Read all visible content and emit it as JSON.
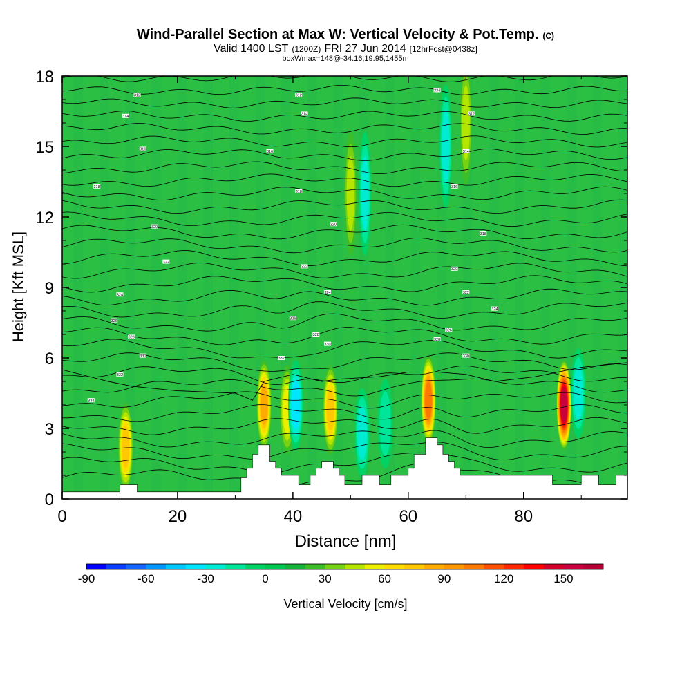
{
  "chart_data": {
    "type": "heatmap",
    "title": "Wind-Parallel Section at Max W: Vertical Velocity & Pot.Temp.",
    "title_mark": "(C)",
    "subtitle_valid": "Valid 1400 LST",
    "subtitle_utc": "(1200Z)",
    "subtitle_date": "FRI 27 Jun 2014",
    "subtitle_fcst": "[12hrFcst@0438z]",
    "subtitle_box": "boxWmax=148@-34.16,19.95,1455m",
    "xlabel": "Distance [nm]",
    "ylabel": "Height [Kft MSL]",
    "xlim": [
      0,
      98
    ],
    "ylim": [
      0,
      18
    ],
    "xticks": [
      0,
      20,
      40,
      60,
      80
    ],
    "yticks": [
      0,
      3,
      6,
      9,
      12,
      15,
      18
    ],
    "colorbar": {
      "label": "Vertical Velocity [cm/s]",
      "ticks": [
        -90,
        -60,
        -30,
        0,
        30,
        60,
        90,
        120,
        150
      ],
      "min": -90,
      "max": 170,
      "step": 10,
      "colors": [
        "#0000ff",
        "#0a3cff",
        "#1464ff",
        "#0096ff",
        "#00c8ff",
        "#00e6ff",
        "#00ecd2",
        "#00e698",
        "#00d264",
        "#00c850",
        "#14b43c",
        "#3cbe28",
        "#78d214",
        "#b4e600",
        "#ecf000",
        "#ffdc00",
        "#ffc800",
        "#ffaa00",
        "#ff9600",
        "#ff7800",
        "#ff5000",
        "#ff2800",
        "#ff0000",
        "#d20028",
        "#c8003c",
        "#b40032"
      ]
    },
    "background_color": "#2bbf44",
    "updrafts": [
      {
        "x": 11,
        "z": 2.2,
        "w": 70
      },
      {
        "x": 35,
        "z": 4.0,
        "w": 80
      },
      {
        "x": 39,
        "z": 3.8,
        "w": 55
      },
      {
        "x": 46.5,
        "z": 3.8,
        "w": 75
      },
      {
        "x": 63.5,
        "z": 4.2,
        "w": 100
      },
      {
        "x": 87,
        "z": 4.0,
        "w": 150
      },
      {
        "x": 50,
        "z": 13,
        "w": 45
      },
      {
        "x": 70,
        "z": 16,
        "w": 40
      }
    ],
    "downdrafts": [
      {
        "x": 40.5,
        "z": 4.0,
        "w": -40
      },
      {
        "x": 52,
        "z": 2.8,
        "w": -35
      },
      {
        "x": 56,
        "z": 3.2,
        "w": -25
      },
      {
        "x": 89.5,
        "z": 4.5,
        "w": -30
      },
      {
        "x": 52.5,
        "z": 13,
        "w": -30
      },
      {
        "x": 66.5,
        "z": 15,
        "w": -30
      }
    ],
    "terrain": [
      [
        0,
        0.3
      ],
      [
        10,
        0.3
      ],
      [
        10,
        0.6
      ],
      [
        13,
        0.6
      ],
      [
        13,
        0.3
      ],
      [
        31,
        0.3
      ],
      [
        31,
        0.9
      ],
      [
        32,
        0.9
      ],
      [
        32,
        1.3
      ],
      [
        33,
        1.3
      ],
      [
        33,
        1.9
      ],
      [
        34,
        1.9
      ],
      [
        34,
        2.3
      ],
      [
        36,
        2.3
      ],
      [
        36,
        1.6
      ],
      [
        37,
        1.6
      ],
      [
        37,
        1.3
      ],
      [
        38,
        1.3
      ],
      [
        38,
        1.0
      ],
      [
        41,
        1.0
      ],
      [
        41,
        0.6
      ],
      [
        43,
        0.6
      ],
      [
        43,
        1.0
      ],
      [
        44,
        1.0
      ],
      [
        44,
        1.3
      ],
      [
        45,
        1.3
      ],
      [
        45,
        1.6
      ],
      [
        47,
        1.6
      ],
      [
        47,
        1.3
      ],
      [
        48,
        1.3
      ],
      [
        48,
        1.0
      ],
      [
        49,
        1.0
      ],
      [
        49,
        0.6
      ],
      [
        52,
        0.6
      ],
      [
        52,
        1.0
      ],
      [
        55,
        1.0
      ],
      [
        55,
        0.6
      ],
      [
        57,
        0.6
      ],
      [
        57,
        1.0
      ],
      [
        60,
        1.0
      ],
      [
        60,
        1.3
      ],
      [
        61,
        1.3
      ],
      [
        61,
        1.9
      ],
      [
        63,
        1.9
      ],
      [
        63,
        2.6
      ],
      [
        65,
        2.6
      ],
      [
        65,
        2.3
      ],
      [
        66,
        2.3
      ],
      [
        66,
        1.9
      ],
      [
        67,
        1.9
      ],
      [
        67,
        1.6
      ],
      [
        68,
        1.6
      ],
      [
        68,
        1.3
      ],
      [
        69,
        1.3
      ],
      [
        69,
        1.0
      ],
      [
        85,
        1.0
      ],
      [
        85,
        0.6
      ],
      [
        90,
        0.6
      ],
      [
        90,
        1.0
      ],
      [
        93,
        1.0
      ],
      [
        93,
        0.6
      ],
      [
        96,
        0.6
      ],
      [
        96,
        1.0
      ],
      [
        98,
        1.0
      ],
      [
        98,
        0
      ]
    ],
    "isentrope_labels": [
      "312",
      "314",
      "316",
      "318",
      "320",
      "322",
      "324",
      "326",
      "328",
      "330",
      "332",
      "334"
    ]
  }
}
